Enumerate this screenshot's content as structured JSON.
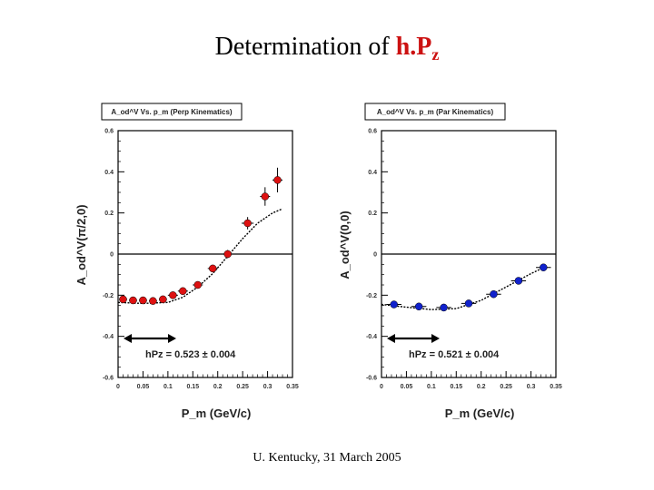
{
  "slide": {
    "title_prefix": "Determination of ",
    "title_highlight": "h.P",
    "title_sub": "z",
    "footer": "U. Kentucky, 31 March 2005"
  },
  "colors": {
    "left_markers": "#dd1111",
    "right_markers": "#1122cc",
    "title_highlight": "#cc1111"
  },
  "chart_data": [
    {
      "type": "scatter",
      "title": "A_od^V Vs. p_m (Perp Kinematics)",
      "xlabel": "P_m (GeV/c)",
      "ylabel": "A_od^V(π/2,0)",
      "xlim": [
        0,
        0.35
      ],
      "ylim": [
        -0.6,
        0.6
      ],
      "x_ticks": [
        "0",
        "0.05",
        "0.1",
        "0.15",
        "0.2",
        "0.25",
        "0.3",
        "0.35"
      ],
      "y_ticks": [
        "-0.6",
        "-0.4",
        "-0.2",
        "0",
        "0.2",
        "0.4",
        "0.6"
      ],
      "grid": false,
      "reference_line_y": 0,
      "annotation": "hPz = 0.523 ± 0.004",
      "series": [
        {
          "marker": "circle",
          "color": "#dd1111",
          "x": [
            0.01,
            0.03,
            0.05,
            0.07,
            0.09,
            0.11,
            0.13,
            0.16,
            0.19,
            0.22,
            0.26,
            0.295,
            0.32
          ],
          "y": [
            -0.22,
            -0.225,
            -0.225,
            -0.228,
            -0.22,
            -0.2,
            -0.18,
            -0.15,
            -0.07,
            0.0,
            0.15,
            0.28,
            0.36
          ],
          "yerr": [
            0.01,
            0.01,
            0.01,
            0.01,
            0.01,
            0.01,
            0.012,
            0.012,
            0.015,
            0.02,
            0.03,
            0.045,
            0.06
          ],
          "xerr": [
            0.008,
            0.008,
            0.008,
            0.008,
            0.008,
            0.01,
            0.01,
            0.01,
            0.01,
            0.012,
            0.012,
            0.01,
            0.01
          ]
        }
      ],
      "fit_curve": {
        "x": [
          0,
          0.05,
          0.1,
          0.13,
          0.16,
          0.19,
          0.22,
          0.25,
          0.28,
          0.31,
          0.33
        ],
        "y": [
          -0.235,
          -0.24,
          -0.235,
          -0.21,
          -0.16,
          -0.095,
          -0.01,
          0.075,
          0.15,
          0.2,
          0.22
        ]
      }
    },
    {
      "type": "scatter",
      "title": "A_od^V Vs. p_m (Par Kinematics)",
      "xlabel": "P_m (GeV/c)",
      "ylabel": "A_od^V(0,0)",
      "xlim": [
        0,
        0.35
      ],
      "ylim": [
        -0.6,
        0.6
      ],
      "x_ticks": [
        "0",
        "0.05",
        "0.1",
        "0.15",
        "0.2",
        "0.25",
        "0.3",
        "0.35"
      ],
      "y_ticks": [
        "-0.6",
        "-0.4",
        "-0.2",
        "0",
        "0.2",
        "0.4",
        "0.6"
      ],
      "grid": false,
      "reference_line_y": 0,
      "annotation": "hPz = 0.521 ± 0.004",
      "series": [
        {
          "marker": "circle",
          "color": "#1122cc",
          "x": [
            0.025,
            0.075,
            0.125,
            0.175,
            0.225,
            0.275,
            0.325
          ],
          "y": [
            -0.245,
            -0.255,
            -0.26,
            -0.24,
            -0.195,
            -0.13,
            -0.065
          ],
          "yerr": [
            0.008,
            0.008,
            0.008,
            0.009,
            0.01,
            0.012,
            0.015
          ],
          "xerr": [
            0.015,
            0.015,
            0.015,
            0.015,
            0.015,
            0.015,
            0.015
          ]
        }
      ],
      "fit_curve": {
        "x": [
          0,
          0.05,
          0.1,
          0.15,
          0.2,
          0.25,
          0.3,
          0.33
        ],
        "y": [
          -0.245,
          -0.258,
          -0.27,
          -0.265,
          -0.225,
          -0.16,
          -0.095,
          -0.06
        ]
      }
    }
  ]
}
